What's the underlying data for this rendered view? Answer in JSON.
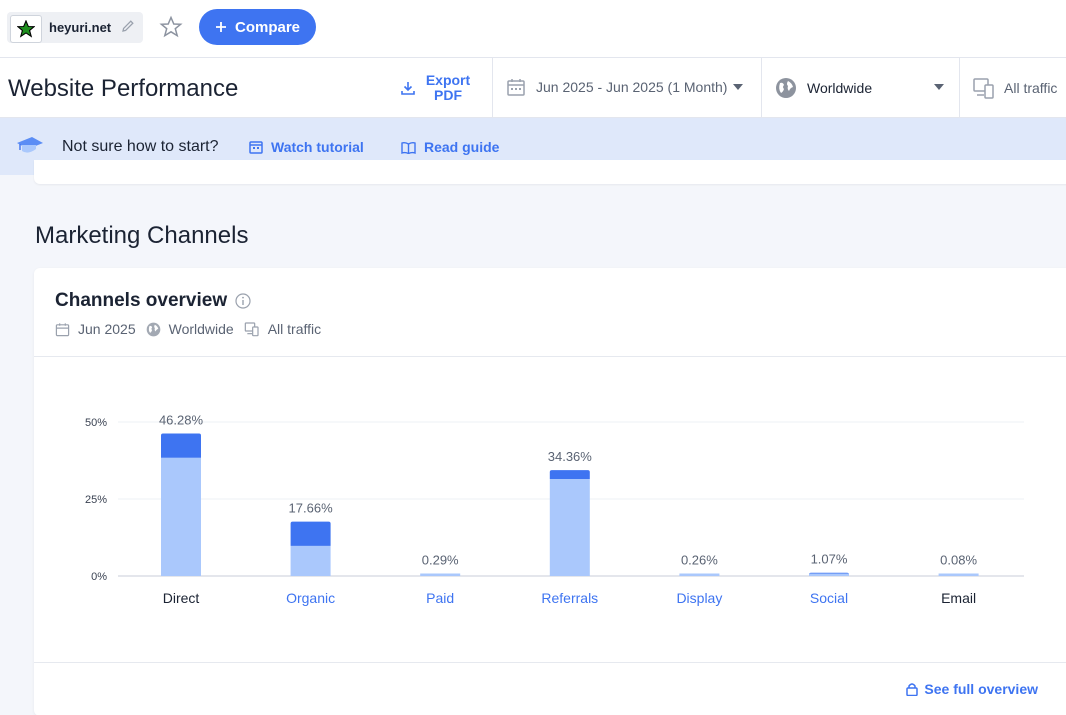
{
  "topbar": {
    "site": "heyuri.net",
    "compare_label": "Compare"
  },
  "header": {
    "title": "Website Performance",
    "export_label": "Export PDF",
    "date_range": "Jun 2025 - Jun 2025 (1 Month)",
    "geo": "Worldwide",
    "traffic": "All traffic"
  },
  "banner": {
    "question": "Not sure how to start?",
    "watch_label": "Watch tutorial",
    "read_label": "Read guide"
  },
  "section": {
    "title": "Marketing Channels"
  },
  "card": {
    "title": "Channels overview",
    "meta_date": "Jun 2025",
    "meta_geo": "Worldwide",
    "meta_traffic": "All traffic",
    "see_full_label": "See full overview"
  },
  "colors": {
    "accent": "#3e74f1",
    "bar_dark": "#3e74f1",
    "bar_light": "#aac8fc"
  },
  "chart_data": {
    "type": "bar",
    "categories": [
      "Direct",
      "Organic",
      "Paid",
      "Referrals",
      "Display",
      "Social",
      "Email"
    ],
    "values": [
      46.28,
      17.66,
      0.29,
      34.36,
      0.26,
      1.07,
      0.08
    ],
    "value_labels": [
      "46.28%",
      "17.66%",
      "0.29%",
      "34.36%",
      "0.26%",
      "1.07%",
      "0.08%"
    ],
    "light_segment": [
      38.4,
      9.8,
      0.29,
      31.5,
      0.26,
      0.6,
      0.08
    ],
    "category_is_link": [
      false,
      true,
      true,
      true,
      true,
      true,
      false
    ],
    "yticks": [
      "0%",
      "25%",
      "50%"
    ],
    "ytick_values": [
      0,
      25,
      50
    ],
    "ylim": [
      0,
      50
    ],
    "grid": true
  }
}
